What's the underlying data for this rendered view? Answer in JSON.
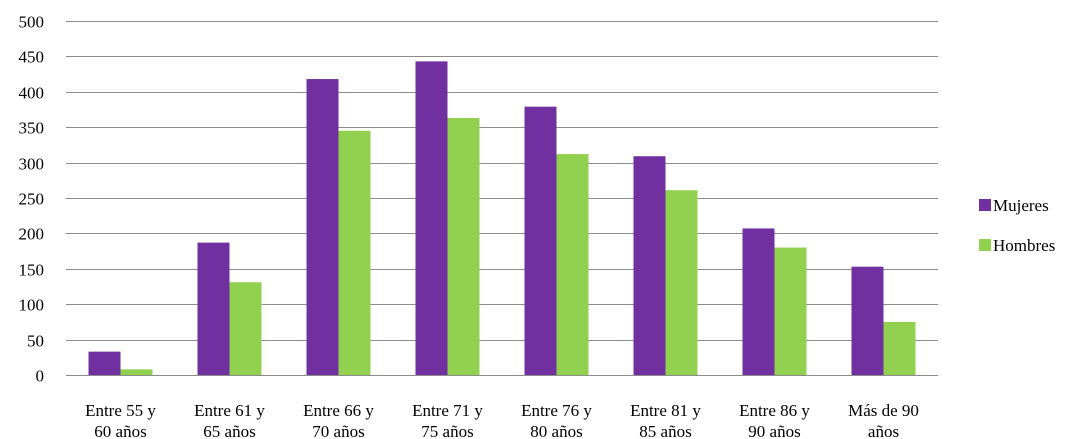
{
  "chart_data": {
    "type": "bar",
    "title": "",
    "xlabel": "",
    "ylabel": "",
    "ylim": [
      0,
      500
    ],
    "yticks": [
      "0",
      "50",
      "100",
      "150",
      "200",
      "250",
      "300",
      "350",
      "400",
      "450",
      "500"
    ],
    "grid": true,
    "legend_position": "right",
    "categories": [
      [
        "Entre 55 y",
        "60 años"
      ],
      [
        "Entre 61 y",
        "65 años"
      ],
      [
        "Entre 66 y",
        "70 años"
      ],
      [
        "Entre 71 y",
        "75 años"
      ],
      [
        "Entre 76 y",
        "80 años"
      ],
      [
        "Entre 81 y",
        "85 años"
      ],
      [
        "Entre 86 y",
        "90 años"
      ],
      [
        "Más de 90",
        "años"
      ]
    ],
    "series": [
      {
        "name": "Mujeres",
        "color": "#7030a0",
        "values": [
          33,
          187,
          418,
          443,
          379,
          309,
          207,
          153
        ]
      },
      {
        "name": "Hombres",
        "color": "#92d050",
        "values": [
          8,
          131,
          345,
          363,
          312,
          261,
          180,
          75
        ]
      }
    ]
  }
}
